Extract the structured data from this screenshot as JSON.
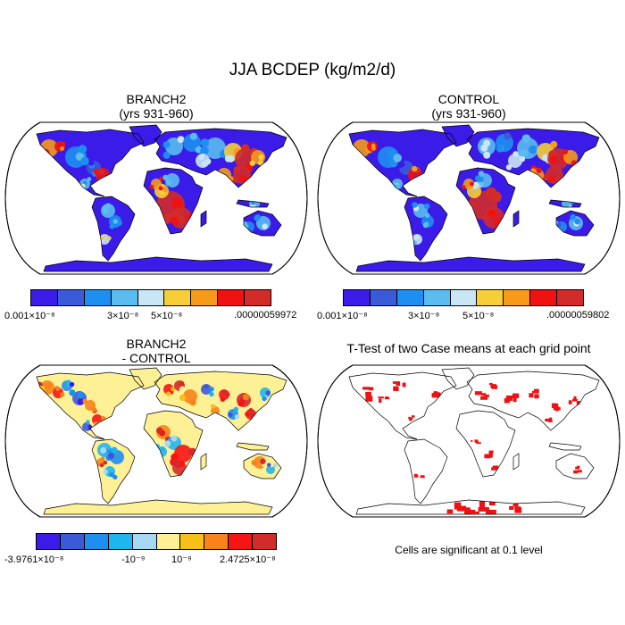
{
  "figure": {
    "title": "JJA BCDEP (kg/m2/d)"
  },
  "panels": {
    "branch": {
      "title_line1": "BRANCH2",
      "title_line2": "(yrs 931-960)"
    },
    "control": {
      "title_line1": "CONTROL",
      "title_line2": "(yrs 931-960)"
    },
    "diff": {
      "title_line1": "BRANCH2",
      "title_line2": "- CONTROL"
    },
    "ttest": {
      "title": "T-Test of two Case means at each grid point",
      "note": "Cells are significant at 0.1 level"
    }
  },
  "colorbars": {
    "branch": {
      "colors": [
        "#3a1be8",
        "#3b5ad9",
        "#1e8ff0",
        "#5bbcf0",
        "#c9e6f4",
        "#f6cf38",
        "#f79a1a",
        "#ee1212",
        "#d32a2a"
      ],
      "labels": [
        "0.001×10⁻⁸",
        "3×10⁻⁸",
        "5×10⁻⁸",
        ".00000059972"
      ]
    },
    "control": {
      "colors": [
        "#3a1be8",
        "#3b5ad9",
        "#1e8ff0",
        "#5bbcf0",
        "#c9e6f4",
        "#f6cf38",
        "#f79a1a",
        "#ee1212",
        "#d32a2a"
      ],
      "labels": [
        "0.001×10⁻⁸",
        "3×10⁻⁸",
        "5×10⁻⁸",
        ".00000059802"
      ]
    },
    "diff": {
      "colors": [
        "#3a1be8",
        "#3b5ad9",
        "#1e8ff0",
        "#1eb6ef",
        "#a7d8f2",
        "#fdf095",
        "#f6bf1a",
        "#f7831a",
        "#f71414",
        "#d32a2a"
      ],
      "labels": [
        "-3.9761×10⁻⁸",
        "-10⁻⁹",
        "10⁻⁹",
        "2.4725×10⁻⁸"
      ]
    }
  },
  "chart_data": [
    {
      "type": "heatmap",
      "title": "BRANCH2 (yrs 931-960)",
      "projection": "Robinson",
      "variable": "BCDEP",
      "units": "kg/m2/d",
      "season": "JJA",
      "colorbar_range": [
        1e-11,
        5.9972e-07
      ],
      "colorbar_labels": [
        "0.001×10⁻⁸",
        "3×10⁻⁸",
        "5×10⁻⁸",
        ".00000059972"
      ]
    },
    {
      "type": "heatmap",
      "title": "CONTROL (yrs 931-960)",
      "projection": "Robinson",
      "variable": "BCDEP",
      "units": "kg/m2/d",
      "season": "JJA",
      "colorbar_range": [
        1e-11,
        5.9802e-07
      ],
      "colorbar_labels": [
        "0.001×10⁻⁸",
        "3×10⁻⁸",
        "5×10⁻⁸",
        ".00000059802"
      ]
    },
    {
      "type": "heatmap",
      "title": "BRANCH2 - CONTROL",
      "projection": "Robinson",
      "colorbar_range": [
        -3.9761e-08,
        2.4725e-08
      ],
      "colorbar_labels": [
        "-3.9761×10⁻⁸",
        "-10⁻⁹",
        "10⁻⁹",
        "2.4725×10⁻⁸"
      ]
    },
    {
      "type": "heatmap",
      "title": "T-Test of two Case means at each grid point",
      "projection": "Robinson",
      "significance_level": 0.1,
      "significant_color": "#ee1111"
    }
  ]
}
